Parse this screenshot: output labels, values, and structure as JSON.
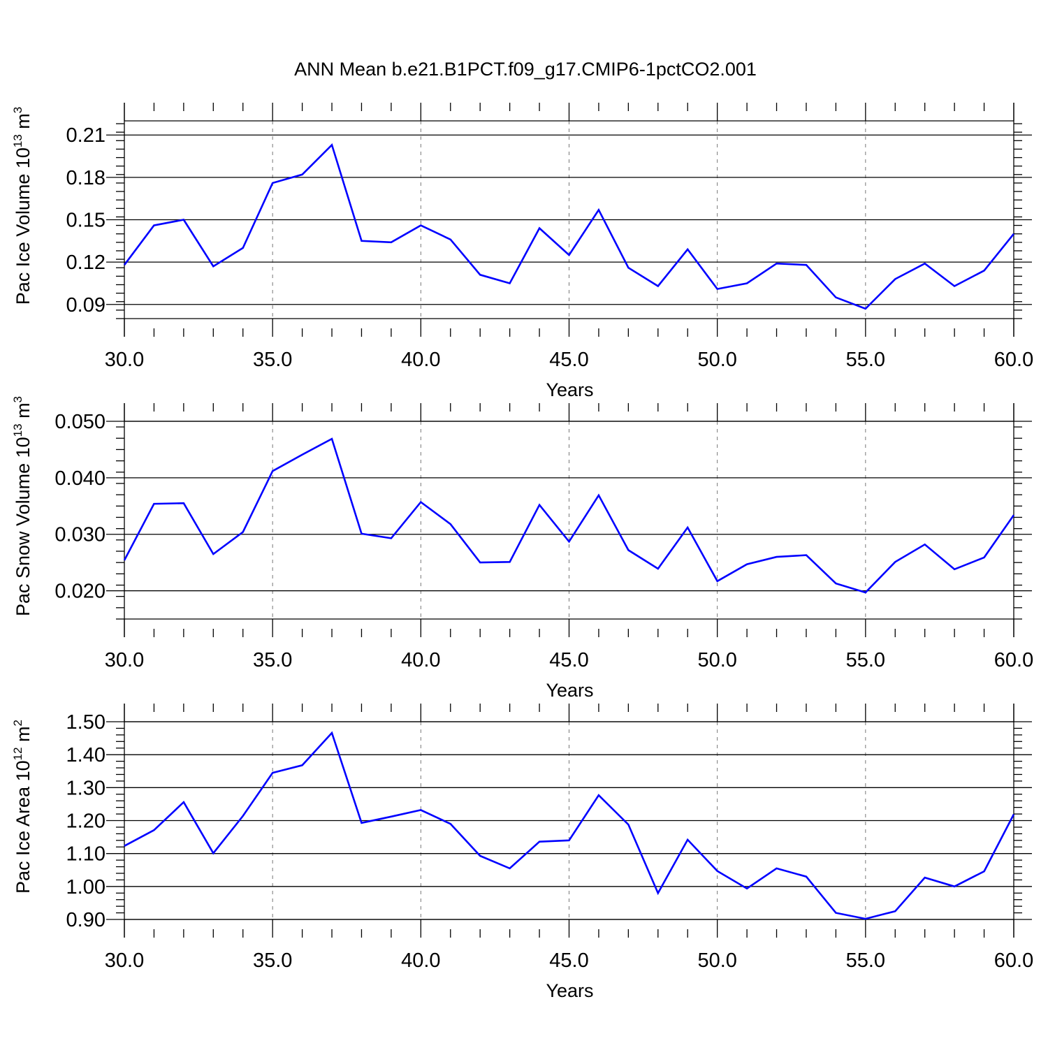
{
  "title": "ANN Mean b.e21.B1PCT.f09_g17.CMIP6-1pctCO2.001",
  "line_color": "#0000ff",
  "chart_data": [
    {
      "type": "line",
      "ylabel_main": "Pac Ice Volume 10",
      "ylabel_exp": "13",
      "ylabel_unit": " m",
      "ylabel_unit_exp": "3",
      "xlabel": "Years",
      "xlim": [
        30,
        60
      ],
      "ylim": [
        0.08,
        0.22
      ],
      "xticks": [
        "30.0",
        "35.0",
        "40.0",
        "45.0",
        "50.0",
        "55.0",
        "60.0"
      ],
      "yticks": [
        0.09,
        0.12,
        0.15,
        0.18,
        0.21
      ],
      "ytick_labels": [
        "0.09",
        "0.12",
        "0.15",
        "0.18",
        "0.21"
      ],
      "grid": "vertical dashed",
      "series": [
        {
          "x": [
            30,
            31,
            32,
            33,
            34,
            35,
            36,
            37,
            38,
            39,
            40,
            41,
            42,
            43,
            44,
            45,
            46,
            47,
            48,
            49,
            50,
            51,
            52,
            53,
            54,
            55,
            56,
            57,
            58,
            59,
            60
          ],
          "values": [
            0.118,
            0.146,
            0.15,
            0.117,
            0.13,
            0.176,
            0.182,
            0.203,
            0.135,
            0.134,
            0.146,
            0.136,
            0.111,
            0.105,
            0.144,
            0.125,
            0.157,
            0.116,
            0.103,
            0.129,
            0.101,
            0.105,
            0.119,
            0.118,
            0.095,
            0.087,
            0.108,
            0.119,
            0.103,
            0.114,
            0.14
          ]
        }
      ]
    },
    {
      "type": "line",
      "ylabel_main": "Pac Snow Volume 10",
      "ylabel_exp": "13",
      "ylabel_unit": " m",
      "ylabel_unit_exp": "3",
      "xlabel": "Years",
      "xlim": [
        30,
        60
      ],
      "ylim": [
        0.015,
        0.05
      ],
      "xticks": [
        "30.0",
        "35.0",
        "40.0",
        "45.0",
        "50.0",
        "55.0",
        "60.0"
      ],
      "yticks": [
        0.02,
        0.03,
        0.04,
        0.05
      ],
      "ytick_labels": [
        "0.020",
        "0.030",
        "0.040",
        "0.050"
      ],
      "grid": "vertical dashed",
      "series": [
        {
          "x": [
            30,
            31,
            32,
            33,
            34,
            35,
            36,
            37,
            38,
            39,
            40,
            41,
            42,
            43,
            44,
            45,
            46,
            47,
            48,
            49,
            50,
            51,
            52,
            53,
            54,
            55,
            56,
            57,
            58,
            59,
            60
          ],
          "values": [
            0.0254,
            0.0354,
            0.0355,
            0.0265,
            0.0304,
            0.0412,
            0.0441,
            0.0469,
            0.0301,
            0.0293,
            0.0357,
            0.0318,
            0.025,
            0.0251,
            0.0352,
            0.0287,
            0.0369,
            0.0272,
            0.0239,
            0.0312,
            0.0217,
            0.0247,
            0.026,
            0.0263,
            0.0213,
            0.0197,
            0.0251,
            0.0282,
            0.0238,
            0.0259,
            0.0334
          ]
        }
      ]
    },
    {
      "type": "line",
      "ylabel_main": "Pac Ice Area 10",
      "ylabel_exp": "12",
      "ylabel_unit": " m",
      "ylabel_unit_exp": "2",
      "xlabel": "Years",
      "xlim": [
        30,
        60
      ],
      "ylim": [
        0.9,
        1.5
      ],
      "xticks": [
        "30.0",
        "35.0",
        "40.0",
        "45.0",
        "50.0",
        "55.0",
        "60.0"
      ],
      "yticks": [
        0.9,
        1.0,
        1.1,
        1.2,
        1.3,
        1.4,
        1.5
      ],
      "ytick_labels": [
        "0.90",
        "1.00",
        "1.10",
        "1.20",
        "1.30",
        "1.40",
        "1.50"
      ],
      "grid": "vertical dashed",
      "series": [
        {
          "x": [
            30,
            31,
            32,
            33,
            34,
            35,
            36,
            37,
            38,
            39,
            40,
            41,
            42,
            43,
            44,
            45,
            46,
            47,
            48,
            49,
            50,
            51,
            52,
            53,
            54,
            55,
            56,
            57,
            58,
            59,
            60
          ],
          "values": [
            1.123,
            1.171,
            1.256,
            1.101,
            1.214,
            1.345,
            1.368,
            1.466,
            1.193,
            1.212,
            1.232,
            1.19,
            1.093,
            1.055,
            1.136,
            1.14,
            1.277,
            1.188,
            0.98,
            1.142,
            1.047,
            0.994,
            1.055,
            1.03,
            0.92,
            0.902,
            0.925,
            1.027,
            1.0,
            1.046,
            1.219
          ]
        }
      ]
    }
  ]
}
